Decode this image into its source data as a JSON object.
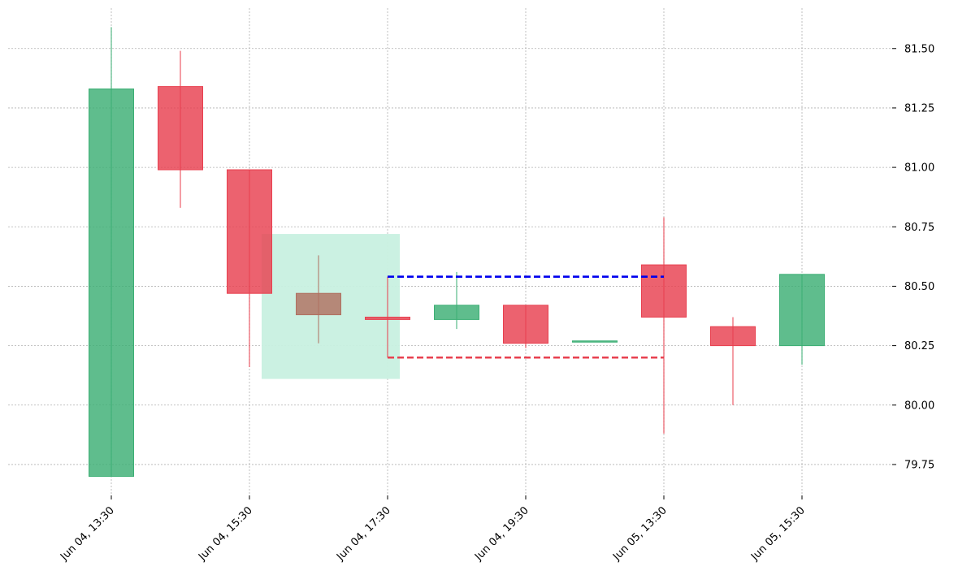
{
  "chart_data": {
    "type": "candlestick",
    "title": "",
    "xlabel": "",
    "ylabel": "",
    "ylim": [
      79.62,
      81.67
    ],
    "yticks": [
      79.75,
      80.0,
      80.25,
      80.5,
      80.75,
      81.0,
      81.25,
      81.5
    ],
    "ytick_labels": [
      "79.75",
      "80.00",
      "80.25",
      "80.50",
      "80.75",
      "81.00",
      "81.25",
      "81.50"
    ],
    "xticks": [
      {
        "index": 0,
        "label": "Jun 04, 13:30"
      },
      {
        "index": 2,
        "label": "Jun 04, 15:30"
      },
      {
        "index": 4,
        "label": "Jun 04, 17:30"
      },
      {
        "index": 6,
        "label": "Jun 04, 19:30"
      },
      {
        "index": 8,
        "label": "Jun 05, 13:30"
      },
      {
        "index": 10,
        "label": "Jun 05, 15:30"
      }
    ],
    "grid": true,
    "y_axis_side": "right",
    "colors": {
      "up": "#3caf74",
      "down": "#e8404f",
      "highlight": "#b07060",
      "zone": "#c8f0e0",
      "upper_line": "#0000ee",
      "lower_line": "#e8404f"
    },
    "candles": [
      {
        "open": 79.7,
        "high": 81.59,
        "low": 79.7,
        "close": 81.33
      },
      {
        "open": 81.34,
        "high": 81.49,
        "low": 80.83,
        "close": 80.99
      },
      {
        "open": 80.99,
        "high": 80.99,
        "low": 80.16,
        "close": 80.47
      },
      {
        "open": 80.47,
        "high": 80.63,
        "low": 80.26,
        "close": 80.38,
        "highlight": true
      },
      {
        "open": 80.37,
        "high": 80.54,
        "low": 80.2,
        "close": 80.36
      },
      {
        "open": 80.36,
        "high": 80.56,
        "low": 80.32,
        "close": 80.42
      },
      {
        "open": 80.42,
        "high": 80.42,
        "low": 80.24,
        "close": 80.26
      },
      {
        "open": 80.27,
        "high": 80.27,
        "low": 80.27,
        "close": 80.27
      },
      {
        "open": 80.59,
        "high": 80.79,
        "low": 79.88,
        "close": 80.37
      },
      {
        "open": 80.33,
        "high": 80.37,
        "low": 80.0,
        "close": 80.25
      },
      {
        "open": 80.25,
        "high": 80.55,
        "low": 80.17,
        "close": 80.55
      }
    ],
    "zone": {
      "start": 2.5,
      "end": 4.5,
      "low": 80.11,
      "high": 80.72
    },
    "upper_line": {
      "start": 4,
      "end": 8,
      "value": 80.54
    },
    "lower_line": {
      "start": 4,
      "end": 8,
      "value": 80.2
    }
  }
}
